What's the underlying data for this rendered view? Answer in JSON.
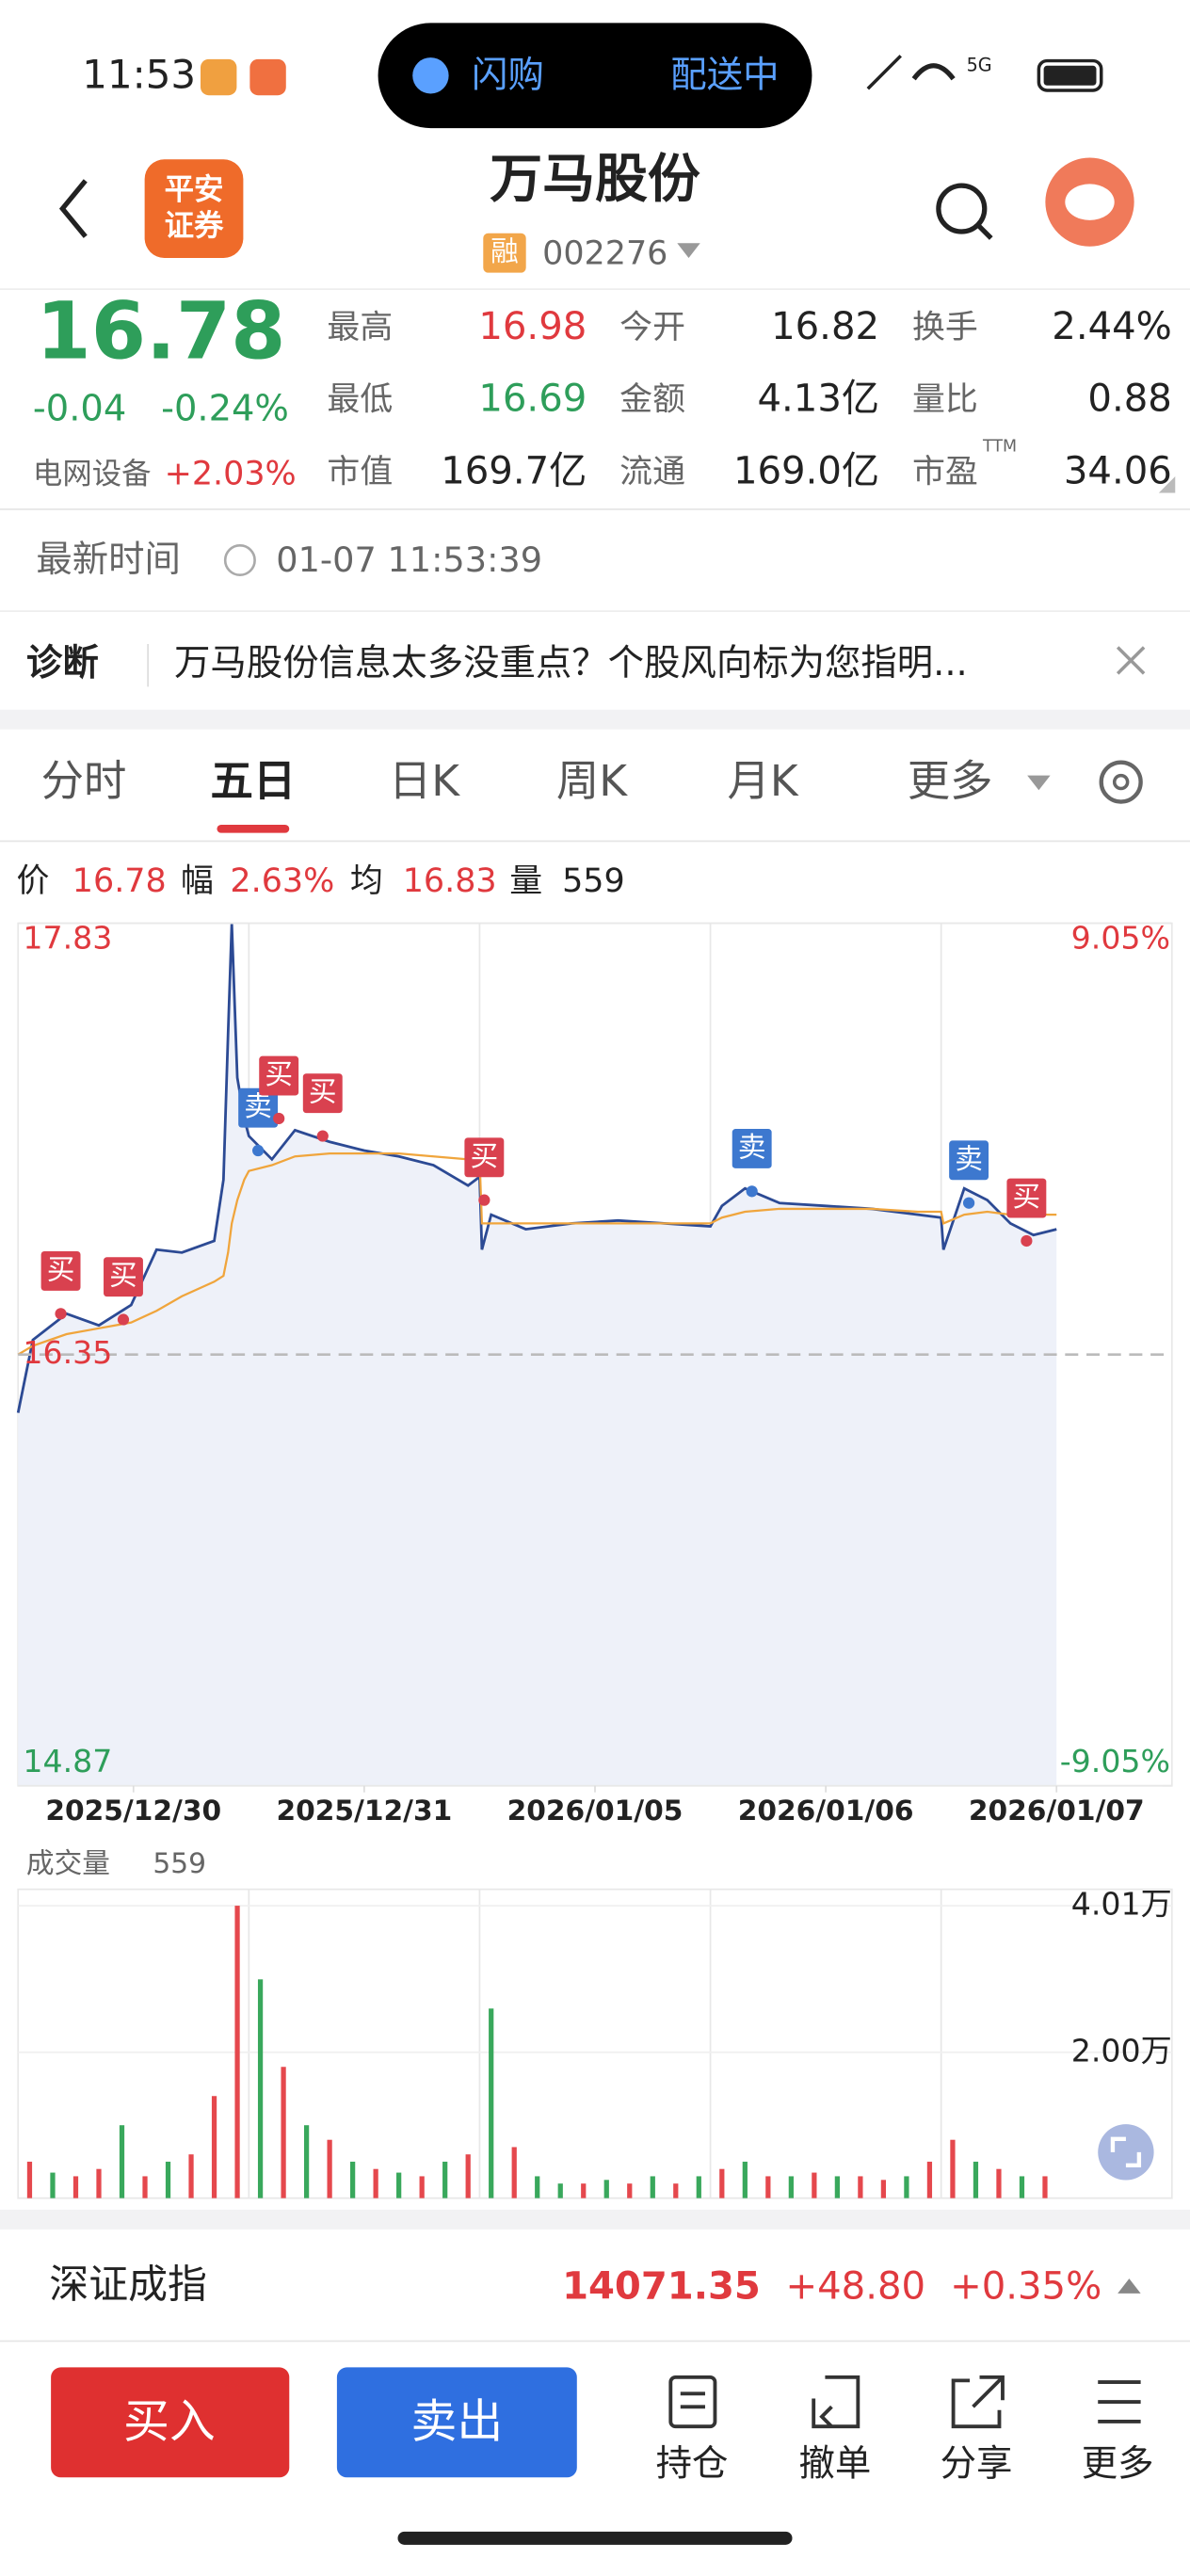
{
  "status_bar": {
    "time": "11:53",
    "pill_left": "闪购",
    "pill_right": "配送中",
    "network": "5G"
  },
  "header": {
    "logo": [
      "平安",
      "证券"
    ],
    "title": "万马股份",
    "badge": "融",
    "code": "002276"
  },
  "quote": {
    "price": "16.78",
    "change": "-0.04",
    "change_pct": "-0.24%",
    "sector": "电网设备",
    "sector_pct": "+2.03%",
    "stats": [
      {
        "label": "最高",
        "value": "16.98",
        "color": "#e0393e"
      },
      {
        "label": "今开",
        "value": "16.82"
      },
      {
        "label": "换手",
        "value": "2.44%"
      },
      {
        "label": "最低",
        "value": "16.69",
        "color": "#2e9e5a"
      },
      {
        "label": "金额",
        "value": "4.13亿"
      },
      {
        "label": "量比",
        "value": "0.88"
      },
      {
        "label": "市值",
        "value": "169.7亿"
      },
      {
        "label": "流通",
        "value": "169.0亿"
      },
      {
        "label": "市盈",
        "value": "34.06",
        "sup": "TTM"
      }
    ]
  },
  "update": {
    "label": "最新时间",
    "time": "01-07 11:53:39"
  },
  "diagnosis": {
    "label": "诊断",
    "text": "万马股份信息太多没重点？个股风向标为您指明..."
  },
  "tabs": {
    "items": [
      "分时",
      "五日",
      "日K",
      "周K",
      "月K",
      "更多"
    ],
    "active": 1
  },
  "info_bar": [
    {
      "label": "价",
      "value": "16.78"
    },
    {
      "label": "幅",
      "value": "2.63%"
    },
    {
      "label": "均",
      "value": "16.83"
    },
    {
      "label": "量",
      "value": "559"
    }
  ],
  "chart_data": [
    {
      "type": "line",
      "x": [
        0,
        0.064,
        0.21,
        0.35,
        0.49,
        0.6,
        0.71,
        0.85,
        0.89,
        0.91,
        0.926,
        0.95,
        0.98,
        1.0,
        1.1,
        1.2,
        1.35,
        1.5,
        1.65,
        1.8,
        1.95,
        2.0,
        2.01,
        2.05,
        2.2,
        2.4,
        2.6,
        2.8,
        3.0,
        3.05,
        3.15,
        3.3,
        3.5,
        3.7,
        3.9,
        4.0,
        4.01,
        4.1,
        4.2,
        4.3,
        4.4,
        4.5
      ],
      "xlim": [
        0,
        5
      ],
      "xticks": [
        {
          "value": 0.5,
          "label": "2025/12/30"
        },
        {
          "value": 1.5,
          "label": "2025/12/31"
        },
        {
          "value": 2.5,
          "label": "2026/01/05"
        },
        {
          "value": 3.5,
          "label": "2026/01/06"
        },
        {
          "value": 4.5,
          "label": "2026/01/07"
        }
      ],
      "ylim": [
        14.87,
        17.83
      ],
      "yticks": [
        17.83,
        16.35,
        14.87
      ],
      "y2lim": [
        -9.05,
        9.05
      ],
      "y2ticks": [
        {
          "value": 9.05,
          "label": "9.05%"
        },
        {
          "value": -9.05,
          "label": "-9.05%"
        }
      ],
      "grid": true,
      "series": [
        {
          "color": "#2c4a94",
          "values": [
            16.15,
            16.4,
            16.49,
            16.45,
            16.52,
            16.71,
            16.7,
            16.74,
            16.95,
            17.45,
            17.83,
            17.3,
            17.16,
            17.1,
            17.02,
            17.12,
            17.08,
            17.05,
            17.03,
            17.0,
            16.93,
            16.96,
            16.71,
            16.83,
            16.78,
            16.8,
            16.81,
            16.8,
            16.79,
            16.86,
            16.92,
            16.87,
            16.86,
            16.85,
            16.83,
            16.82,
            16.71,
            16.92,
            16.88,
            16.8,
            16.76,
            16.78
          ]
        },
        {
          "color": "#f0a53c",
          "values": [
            16.35,
            16.38,
            16.42,
            16.44,
            16.46,
            16.5,
            16.55,
            16.6,
            16.62,
            16.7,
            16.8,
            16.88,
            16.95,
            16.98,
            17.0,
            17.03,
            17.04,
            17.04,
            17.04,
            17.03,
            17.02,
            17.02,
            16.8,
            16.8,
            16.8,
            16.8,
            16.8,
            16.8,
            16.8,
            16.82,
            16.84,
            16.85,
            16.85,
            16.85,
            16.84,
            16.84,
            16.8,
            16.83,
            16.84,
            16.83,
            16.83,
            16.83
          ]
        }
      ],
      "annotations": [
        {
          "text": "买",
          "x": 0.185,
          "y": 16.49,
          "color": "#d9414f"
        },
        {
          "text": "买",
          "x": 0.456,
          "y": 16.47,
          "color": "#d9414f"
        },
        {
          "text": "卖",
          "x": 1.04,
          "y": 17.05,
          "color": "#3d78cf"
        },
        {
          "text": "买",
          "x": 1.13,
          "y": 17.16,
          "color": "#d9414f"
        },
        {
          "text": "买",
          "x": 1.32,
          "y": 17.1,
          "color": "#d9414f"
        },
        {
          "text": "买",
          "x": 2.02,
          "y": 16.88,
          "color": "#d9414f"
        },
        {
          "text": "卖",
          "x": 3.18,
          "y": 16.91,
          "color": "#3d78cf"
        },
        {
          "text": "卖",
          "x": 4.12,
          "y": 16.87,
          "color": "#3d78cf"
        },
        {
          "text": "买",
          "x": 4.37,
          "y": 16.74,
          "color": "#d9414f"
        }
      ]
    },
    {
      "type": "bar",
      "title": "成交量",
      "subtitle": "559",
      "x": [
        0.05,
        0.15,
        0.25,
        0.35,
        0.45,
        0.55,
        0.65,
        0.75,
        0.85,
        0.95,
        1.05,
        1.15,
        1.25,
        1.35,
        1.45,
        1.55,
        1.65,
        1.75,
        1.85,
        1.95,
        2.05,
        2.15,
        2.25,
        2.35,
        2.45,
        2.55,
        2.65,
        2.75,
        2.85,
        2.95,
        3.05,
        3.15,
        3.25,
        3.35,
        3.45,
        3.55,
        3.65,
        3.75,
        3.85,
        3.95,
        4.05,
        4.15,
        4.25,
        4.35,
        4.45
      ],
      "xlim": [
        0,
        5
      ],
      "values": [
        0.5,
        0.35,
        0.3,
        0.4,
        1.0,
        0.3,
        0.5,
        0.6,
        1.4,
        4.01,
        3.0,
        1.8,
        1.0,
        0.8,
        0.5,
        0.4,
        0.35,
        0.3,
        0.5,
        0.6,
        2.6,
        0.7,
        0.3,
        0.2,
        0.2,
        0.25,
        0.2,
        0.3,
        0.2,
        0.3,
        0.4,
        0.5,
        0.3,
        0.3,
        0.35,
        0.3,
        0.3,
        0.25,
        0.3,
        0.5,
        0.8,
        0.5,
        0.4,
        0.3,
        0.3
      ],
      "colors": [
        "#e5484d",
        "#39a85c",
        "#e5484d",
        "#e5484d",
        "#39a85c",
        "#e5484d",
        "#39a85c",
        "#e5484d",
        "#e5484d",
        "#e5484d",
        "#39a85c",
        "#e5484d",
        "#39a85c",
        "#e5484d",
        "#39a85c",
        "#e5484d",
        "#39a85c",
        "#e5484d",
        "#39a85c",
        "#e5484d",
        "#39a85c",
        "#e5484d",
        "#39a85c",
        "#39a85c",
        "#e5484d",
        "#39a85c",
        "#e5484d",
        "#39a85c",
        "#e5484d",
        "#39a85c",
        "#e5484d",
        "#39a85c",
        "#e5484d",
        "#39a85c",
        "#e5484d",
        "#39a85c",
        "#e5484d",
        "#e5484d",
        "#39a85c",
        "#e5484d",
        "#e5484d",
        "#39a85c",
        "#e5484d",
        "#39a85c",
        "#e5484d"
      ],
      "ylim": [
        0,
        4.01
      ],
      "yticks": [
        {
          "value": 2.0,
          "label": "2.00万"
        },
        {
          "value": 4.01,
          "label": "4.01万"
        }
      ]
    }
  ],
  "index_bar": {
    "name": "深证成指",
    "value": "14071.35",
    "change": "+48.80",
    "change_pct": "+0.35%"
  },
  "actions": {
    "buy": "买入",
    "sell": "卖出",
    "tools": [
      "持仓",
      "撤单",
      "分享",
      "更多"
    ]
  }
}
